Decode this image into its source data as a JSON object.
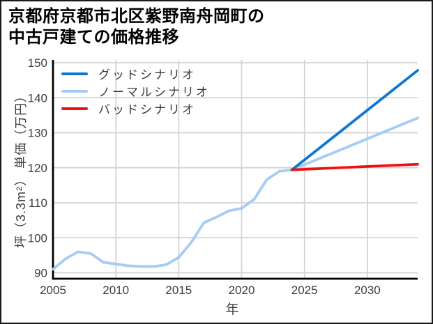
{
  "title": {
    "line1": "京都府京都市北区紫野南舟岡町の",
    "line2": "中古戸建ての価格推移"
  },
  "chart_data": {
    "type": "line",
    "title": "京都府京都市北区紫野南舟岡町の中古戸建ての価格推移",
    "xlabel": "年",
    "ylabel": "坪（3.3m²） 単価（万円）",
    "xlim": [
      2005,
      2034
    ],
    "ylim": [
      88,
      151
    ],
    "xticks": [
      2005,
      2010,
      2015,
      2020,
      2025,
      2030
    ],
    "yticks": [
      90,
      100,
      110,
      120,
      130,
      140,
      150
    ],
    "grid": true,
    "grid_color": "#d2d2d2",
    "axis_color": "#000000",
    "legend_position": "upper-left",
    "forecast_start_year": 2024,
    "series": [
      {
        "name": "グッドシナリオ",
        "color": "#1176d1",
        "x": [
          2024,
          2034
        ],
        "y": [
          119.4,
          147.8
        ]
      },
      {
        "name": "ノーマルシナリオ",
        "color": "#a5cdf4",
        "x": [
          2005,
          2006,
          2007,
          2008,
          2009,
          2010,
          2011,
          2012,
          2013,
          2014,
          2015,
          2016,
          2017,
          2018,
          2019,
          2020,
          2021,
          2022,
          2023,
          2024,
          2034
        ],
        "y": [
          91.0,
          94.0,
          96.0,
          95.5,
          93.0,
          92.5,
          92.0,
          91.8,
          91.8,
          92.3,
          94.4,
          98.7,
          104.3,
          105.9,
          107.7,
          108.4,
          111.0,
          116.6,
          119.0,
          119.4,
          134.2
        ]
      },
      {
        "name": "バッドシナリオ",
        "color": "#ee1111",
        "x": [
          2024,
          2034
        ],
        "y": [
          119.4,
          121.0
        ]
      }
    ]
  }
}
